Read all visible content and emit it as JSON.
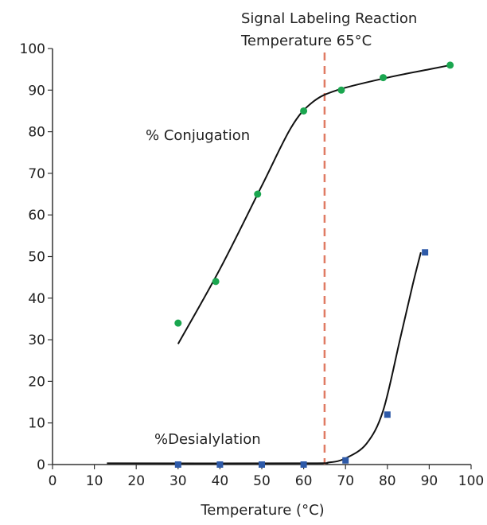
{
  "chart_data": {
    "type": "line",
    "xlabel": "Temperature (°C)",
    "ylabel": "",
    "xlim": [
      0,
      100
    ],
    "ylim": [
      0,
      100
    ],
    "x_ticks": [
      0,
      10,
      20,
      30,
      40,
      50,
      60,
      70,
      80,
      90,
      100
    ],
    "y_ticks": [
      0,
      10,
      20,
      30,
      40,
      50,
      60,
      70,
      80,
      90,
      100
    ],
    "grid": false,
    "annotations": {
      "reaction_line_x": 65,
      "reaction_label_line1": "Signal Labeling Reaction",
      "reaction_label_line2": "Temperature 65°C",
      "reaction_line_color": "#e07b63"
    },
    "series": [
      {
        "name": "% Conjugation",
        "marker_color": "#1aa64f",
        "points": [
          {
            "x": 30,
            "y": 34
          },
          {
            "x": 39,
            "y": 44
          },
          {
            "x": 49,
            "y": 65
          },
          {
            "x": 60,
            "y": 85
          },
          {
            "x": 69,
            "y": 90
          },
          {
            "x": 79,
            "y": 93
          },
          {
            "x": 95,
            "y": 96
          }
        ],
        "curve": [
          {
            "x": 30,
            "y": 29
          },
          {
            "x": 40,
            "y": 47
          },
          {
            "x": 50,
            "y": 67
          },
          {
            "x": 57,
            "y": 81
          },
          {
            "x": 62,
            "y": 87
          },
          {
            "x": 68,
            "y": 90
          },
          {
            "x": 80,
            "y": 93
          },
          {
            "x": 90,
            "y": 95
          },
          {
            "x": 95,
            "y": 96
          }
        ]
      },
      {
        "name": "%Desialylation",
        "marker_color": "#2e5aa8",
        "points": [
          {
            "x": 30,
            "y": 0
          },
          {
            "x": 40,
            "y": 0
          },
          {
            "x": 50,
            "y": 0
          },
          {
            "x": 60,
            "y": 0
          },
          {
            "x": 70,
            "y": 1
          },
          {
            "x": 80,
            "y": 12
          },
          {
            "x": 89,
            "y": 51
          }
        ],
        "curve": [
          {
            "x": 13,
            "y": 0.3
          },
          {
            "x": 60,
            "y": 0.3
          },
          {
            "x": 66,
            "y": 0.5
          },
          {
            "x": 70,
            "y": 1.5
          },
          {
            "x": 75,
            "y": 5
          },
          {
            "x": 79,
            "y": 13
          },
          {
            "x": 83,
            "y": 30
          },
          {
            "x": 86,
            "y": 43
          },
          {
            "x": 88,
            "y": 51
          }
        ]
      }
    ]
  }
}
